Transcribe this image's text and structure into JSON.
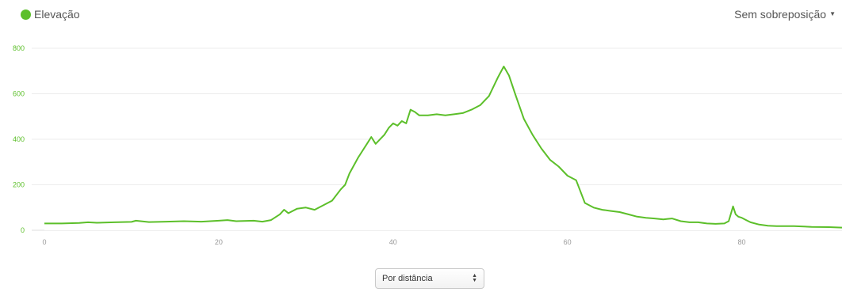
{
  "legend": {
    "label": "Elevação",
    "color": "#5cbf2a"
  },
  "overlay_select": {
    "label": "Sem sobreposição",
    "icon": "caret-down-icon"
  },
  "x_mode_select": {
    "label": "Por distância",
    "icon": "up-down-arrows-icon"
  },
  "chart_data": {
    "type": "area",
    "title": "",
    "xlabel": "",
    "ylabel": "",
    "xlim": [
      0,
      91.5
    ],
    "ylim": [
      0,
      800
    ],
    "yticks": [
      0,
      200,
      400,
      600,
      800
    ],
    "xticks": [
      0,
      20,
      40,
      60,
      80
    ],
    "grid": true,
    "line_color": "#5cbf2a",
    "fill_color": "#ffffff",
    "y_tick_color": "#5cbf2a",
    "series": [
      {
        "name": "Elevação",
        "x": [
          0,
          2,
          4,
          5,
          6,
          8,
          10,
          10.5,
          12,
          14,
          16,
          18,
          20,
          21,
          22,
          24,
          25,
          26,
          27,
          27.5,
          28,
          29,
          30,
          31,
          32,
          33,
          34,
          34.5,
          35,
          36,
          37,
          37.5,
          38,
          39,
          39.5,
          40,
          40.5,
          41,
          41.5,
          42,
          42.5,
          43,
          44,
          45,
          46,
          47,
          48,
          49,
          50,
          51,
          52,
          52.7,
          53.3,
          54,
          55,
          56,
          57,
          58,
          59,
          60,
          61,
          62,
          63,
          64,
          65,
          66,
          67,
          68,
          69,
          70,
          71,
          71.5,
          72,
          73,
          74,
          75,
          76,
          77,
          78,
          78.5,
          79,
          79.3,
          79.6,
          80,
          80.5,
          81,
          82,
          83,
          84,
          86,
          88,
          90,
          91.5
        ],
        "y": [
          30,
          30,
          32,
          35,
          33,
          35,
          37,
          42,
          36,
          38,
          40,
          38,
          42,
          45,
          40,
          42,
          38,
          45,
          70,
          90,
          75,
          95,
          100,
          90,
          110,
          130,
          180,
          200,
          250,
          320,
          380,
          410,
          380,
          420,
          450,
          470,
          460,
          480,
          470,
          530,
          520,
          505,
          505,
          510,
          505,
          510,
          515,
          530,
          550,
          590,
          670,
          720,
          680,
          600,
          490,
          420,
          360,
          310,
          280,
          240,
          220,
          120,
          100,
          90,
          85,
          80,
          70,
          60,
          55,
          52,
          48,
          50,
          52,
          40,
          35,
          35,
          30,
          28,
          30,
          40,
          105,
          70,
          60,
          55,
          45,
          35,
          25,
          20,
          18,
          18,
          15,
          14,
          12
        ]
      }
    ]
  }
}
